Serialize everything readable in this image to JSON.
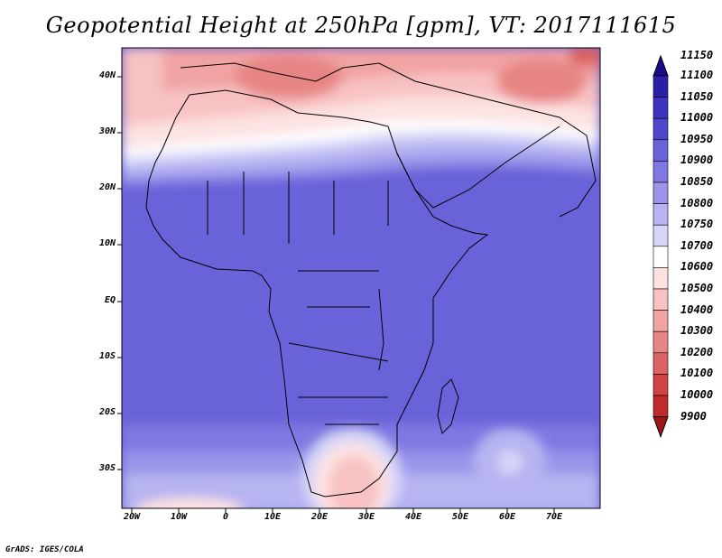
{
  "title": "Geopotential Height at 250hPa [gpm], VT: 2017111615",
  "credit": "GrADS: IGES/COLA",
  "lat_labels": [
    "40N",
    "30N",
    "20N",
    "10N",
    "EQ",
    "10S",
    "20S",
    "30S"
  ],
  "lon_labels": [
    "20W",
    "10W",
    "0",
    "10E",
    "20E",
    "30E",
    "40E",
    "50E",
    "60E",
    "70E"
  ],
  "colorbar": {
    "levels": [
      "11150",
      "11100",
      "11050",
      "11000",
      "10950",
      "10900",
      "10850",
      "10800",
      "10750",
      "10700",
      "10600",
      "10500",
      "10400",
      "10300",
      "10200",
      "10100",
      "10000",
      "9900"
    ],
    "colors": [
      "#1a0a8c",
      "#2b1fa8",
      "#3c32bd",
      "#4f46c9",
      "#6a62d8",
      "#8078e2",
      "#9a95ea",
      "#b6b4f1",
      "#d6d6f8",
      "#ffffff",
      "#fde2e2",
      "#f8c2c2",
      "#f1a3a3",
      "#e78585",
      "#dc6363",
      "#d04343",
      "#c02a2a",
      "#a01515"
    ]
  }
}
